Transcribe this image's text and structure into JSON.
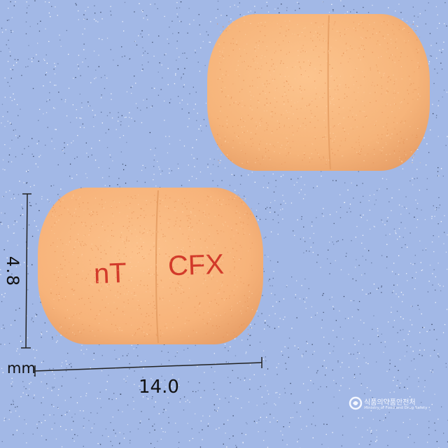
{
  "image": {
    "background_color": "#a2b8e6",
    "tablet_color": "#f8b57a",
    "imprint_color": "#d23a2a"
  },
  "tablet_front": {
    "imprint_left": "nT",
    "imprint_right": "CFX"
  },
  "dimensions": {
    "height_value": "4.8",
    "unit": "mm",
    "width_value": "14.0"
  },
  "logo": {
    "icon": "government-emblem-icon",
    "line1": "식품의약품안전처",
    "line2": "Ministry of Food and Drug Safety"
  }
}
